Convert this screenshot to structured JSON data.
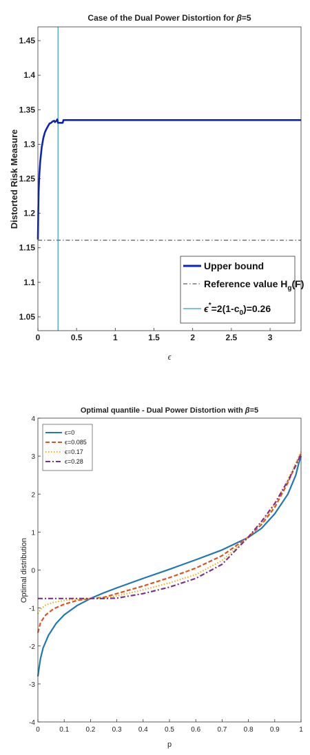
{
  "chart_data": [
    {
      "type": "line",
      "title_prefix": "Case of the Dual Power Distortion for ",
      "title_symbol": "β",
      "title_suffix": "=5",
      "xlabel": "ϵ",
      "ylabel": "Distorted Risk Measure",
      "xlim": [
        0,
        3.4
      ],
      "ylim": [
        1.03,
        1.47
      ],
      "xticks": [
        "0",
        "0.5",
        "1",
        "1.5",
        "2",
        "2.5",
        "3"
      ],
      "xtick_values": [
        0,
        0.5,
        1,
        1.5,
        2,
        2.5,
        3
      ],
      "yticks": [
        "1.05",
        "1.1",
        "1.15",
        "1.2",
        "1.25",
        "1.3",
        "1.35",
        "1.4",
        "1.45"
      ],
      "ytick_values": [
        1.05,
        1.1,
        1.15,
        1.2,
        1.25,
        1.3,
        1.35,
        1.4,
        1.45
      ],
      "series": [
        {
          "name": "Upper bound",
          "color": "#0b24b4",
          "x": [
            0,
            0.005,
            0.01,
            0.02,
            0.03,
            0.05,
            0.07,
            0.09,
            0.11,
            0.13,
            0.15,
            0.17,
            0.19,
            0.21,
            0.22,
            0.24,
            0.25,
            0.26,
            0.27,
            0.3,
            0.32,
            0.33,
            0.5,
            1,
            1.5,
            2,
            2.5,
            3,
            3.4
          ],
          "y": [
            1.162,
            1.205,
            1.232,
            1.258,
            1.275,
            1.296,
            1.309,
            1.317,
            1.322,
            1.326,
            1.33,
            1.331,
            1.333,
            1.334,
            1.332,
            1.334,
            1.336,
            1.331,
            1.331,
            1.331,
            1.331,
            1.335,
            1.335,
            1.335,
            1.335,
            1.335,
            1.335,
            1.335,
            1.335
          ]
        }
      ],
      "reference": {
        "label_main": "Reference value H",
        "label_sub": "g",
        "label_tail": "(F)",
        "value": 1.161,
        "color": "#333333"
      },
      "vline": {
        "label_prefix": "ϵ",
        "label_sup": "*",
        "label_mid": "=2(1-c",
        "label_sub": "0",
        "label_tail": ")=0.26",
        "value": 0.26,
        "color": "#2f9bd6"
      },
      "legend_position": "bottom-right",
      "grid": false
    },
    {
      "type": "line",
      "title_prefix": "Optimal quantile - Dual Power Distortion with ",
      "title_symbol": "β",
      "title_suffix": "=5",
      "xlabel": "p",
      "ylabel": "Optimal distribution",
      "xlim": [
        0,
        1
      ],
      "ylim": [
        -4,
        4
      ],
      "xticks": [
        "0",
        "0.1",
        "0.2",
        "0.3",
        "0.4",
        "0.5",
        "0.6",
        "0.7",
        "0.8",
        "0.9",
        "1"
      ],
      "xtick_values": [
        0,
        0.1,
        0.2,
        0.3,
        0.4,
        0.5,
        0.6,
        0.7,
        0.8,
        0.9,
        1
      ],
      "yticks": [
        "-4",
        "-3",
        "-2",
        "-1",
        "0",
        "1",
        "2",
        "3",
        "4"
      ],
      "ytick_values": [
        -4,
        -3,
        -2,
        -1,
        0,
        1,
        2,
        3,
        4
      ],
      "legend_position": "top-left",
      "grid": false,
      "series": [
        {
          "name": "ϵ=0",
          "color": "#1f77b4",
          "dash": "solid",
          "x": [
            0,
            0.005,
            0.01,
            0.02,
            0.04,
            0.07,
            0.1,
            0.15,
            0.2,
            0.25,
            0.3,
            0.4,
            0.5,
            0.6,
            0.7,
            0.8,
            0.85,
            0.9,
            0.95,
            0.98,
            0.99,
            1
          ],
          "y": [
            -2.8,
            -2.55,
            -2.33,
            -2.05,
            -1.72,
            -1.4,
            -1.18,
            -0.93,
            -0.75,
            -0.6,
            -0.47,
            -0.22,
            0.02,
            0.27,
            0.53,
            0.86,
            1.1,
            1.48,
            2.0,
            2.5,
            2.78,
            3.0
          ]
        },
        {
          "name": "ϵ=0.085",
          "color": "#d9541e",
          "dash": "dash",
          "x": [
            0,
            0.01,
            0.03,
            0.06,
            0.1,
            0.15,
            0.2,
            0.25,
            0.3,
            0.4,
            0.5,
            0.6,
            0.7,
            0.8,
            0.85,
            0.9,
            0.95,
            0.98,
            1
          ],
          "y": [
            -1.65,
            -1.38,
            -1.18,
            -1.02,
            -0.9,
            -0.8,
            -0.75,
            -0.72,
            -0.62,
            -0.42,
            -0.2,
            0.05,
            0.38,
            0.87,
            1.2,
            1.65,
            2.3,
            2.78,
            3.08
          ]
        },
        {
          "name": "ϵ=0.17",
          "color": "#edb120",
          "dash": "dot",
          "x": [
            0,
            0.01,
            0.03,
            0.06,
            0.1,
            0.15,
            0.2,
            0.25,
            0.3,
            0.4,
            0.5,
            0.6,
            0.7,
            0.8,
            0.85,
            0.9,
            0.95,
            0.98,
            1
          ],
          "y": [
            -1.15,
            -1.03,
            -0.92,
            -0.85,
            -0.8,
            -0.77,
            -0.75,
            -0.74,
            -0.68,
            -0.52,
            -0.34,
            -0.12,
            0.25,
            0.87,
            1.25,
            1.72,
            2.38,
            2.82,
            3.12
          ]
        },
        {
          "name": "ϵ=0.28",
          "color": "#7e2f8e",
          "dash": "dashdot",
          "x": [
            0,
            0.05,
            0.1,
            0.15,
            0.2,
            0.25,
            0.3,
            0.4,
            0.5,
            0.6,
            0.7,
            0.8,
            0.85,
            0.9,
            0.95,
            0.98,
            1
          ],
          "y": [
            -0.75,
            -0.75,
            -0.75,
            -0.75,
            -0.75,
            -0.75,
            -0.74,
            -0.62,
            -0.45,
            -0.22,
            0.15,
            0.87,
            1.28,
            1.75,
            2.35,
            2.75,
            3.05
          ]
        }
      ]
    }
  ]
}
